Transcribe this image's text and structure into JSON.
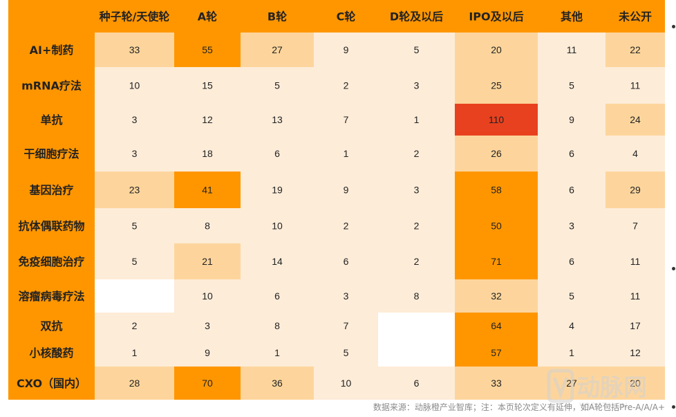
{
  "chart_data": {
    "type": "heatmap",
    "columns": [
      "种子轮/天使轮",
      "A轮",
      "B轮",
      "C轮",
      "D轮及以后",
      "IPO及以后",
      "其他",
      "未公开"
    ],
    "rows": [
      "AI+制药",
      "mRNA疗法",
      "单抗",
      "干细胞疗法",
      "基因治疗",
      "抗体偶联药物",
      "免疫细胞治疗",
      "溶瘤病毒疗法",
      "双抗",
      "小核酸药",
      "CXO（国内）"
    ],
    "values": [
      [
        33,
        55,
        27,
        9,
        5,
        20,
        11,
        22
      ],
      [
        10,
        15,
        5,
        2,
        3,
        25,
        5,
        11
      ],
      [
        3,
        12,
        13,
        7,
        1,
        110,
        9,
        24
      ],
      [
        3,
        18,
        6,
        1,
        2,
        26,
        6,
        4
      ],
      [
        23,
        41,
        19,
        9,
        3,
        58,
        6,
        29
      ],
      [
        5,
        8,
        10,
        2,
        2,
        50,
        3,
        7
      ],
      [
        5,
        21,
        14,
        6,
        2,
        71,
        6,
        11
      ],
      [
        null,
        10,
        6,
        3,
        8,
        32,
        5,
        11
      ],
      [
        2,
        3,
        8,
        7,
        null,
        64,
        4,
        17
      ],
      [
        1,
        9,
        1,
        5,
        null,
        57,
        1,
        12
      ],
      [
        28,
        70,
        36,
        10,
        6,
        33,
        27,
        20
      ]
    ],
    "colors": {
      "header": "#ff9600",
      "low": "#fdecd8",
      "mid": "#fdd59c",
      "high": "#ff9600",
      "max": "#e8411f",
      "empty": "#ffffff"
    }
  },
  "footnote": "数据来源：动脉橙产业智库；注：本页轮次定义有延伸，如A轮包括Pre-A/A/A+",
  "watermark": {
    "logo": "动脉网",
    "url": "VBDATA.CN"
  }
}
